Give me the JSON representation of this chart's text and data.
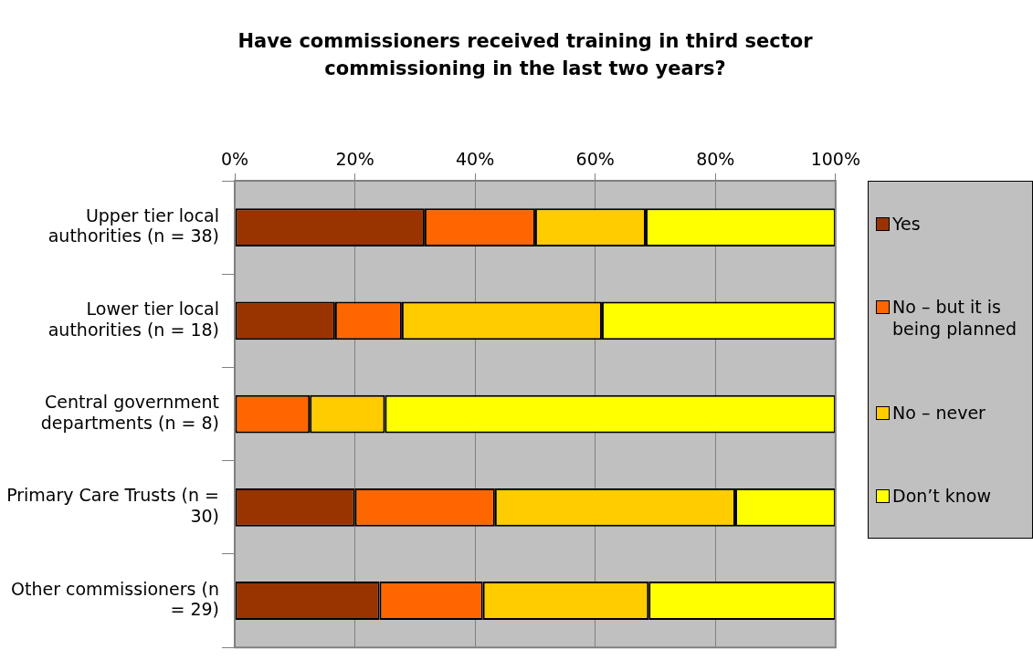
{
  "chart_data": {
    "type": "bar",
    "title": "Have commissioners received training in third sector commissioning in the last two years?",
    "categories": [
      "Upper tier local authorities (n = 38)",
      "Lower tier local authorities (n = 18)",
      "Central government departments (n = 8)",
      "Primary Care Trusts (n = 30)",
      "Other commissioners (n = 29)"
    ],
    "series": [
      {
        "name": "Yes",
        "color": "#993300",
        "values": [
          31.6,
          16.7,
          0,
          20,
          24.1
        ]
      },
      {
        "name": "No – but it is being planned",
        "color": "#ff6600",
        "values": [
          18.4,
          11.1,
          12.5,
          23.3,
          17.2
        ]
      },
      {
        "name": "No – never",
        "color": "#ffcc00",
        "values": [
          18.4,
          33.3,
          12.5,
          40,
          27.6
        ]
      },
      {
        "name": "Don’t know",
        "color": "#ffff00",
        "values": [
          31.6,
          38.9,
          75,
          16.7,
          31.1
        ]
      }
    ],
    "stacked": true,
    "orientation": "horizontal",
    "xlim": [
      0,
      100
    ],
    "xticks": [
      {
        "value": 0,
        "label": "0%"
      },
      {
        "value": 20,
        "label": "20%"
      },
      {
        "value": 40,
        "label": "40%"
      },
      {
        "value": 60,
        "label": "60%"
      },
      {
        "value": 80,
        "label": "80%"
      },
      {
        "value": 100,
        "label": "100%"
      }
    ],
    "grid": "x",
    "legend": "right"
  }
}
